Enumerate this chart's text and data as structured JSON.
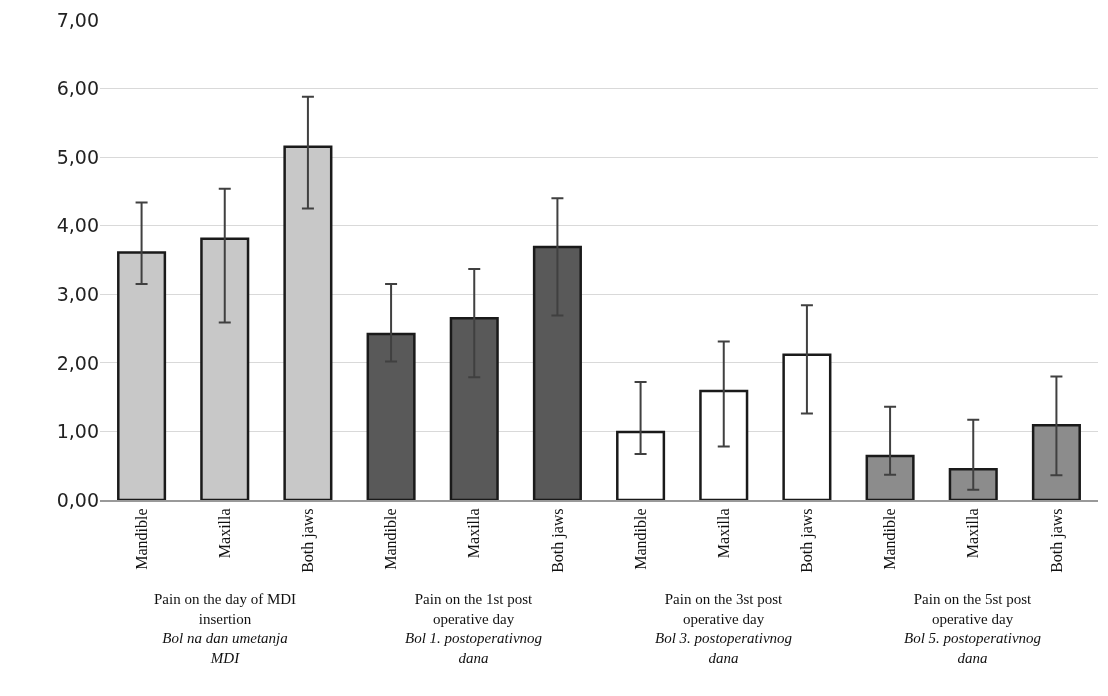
{
  "chart_data": {
    "type": "bar",
    "categories": [
      "Mandible",
      "Maxilla",
      "Both jaws",
      "Mandible",
      "Maxilla",
      "Both jaws",
      "Mandible",
      "Maxilla",
      "Both jaws",
      "Mandible",
      "Maxilla",
      "Both jaws"
    ],
    "values": [
      3.61,
      3.81,
      5.15,
      2.42,
      2.65,
      3.69,
      0.99,
      1.59,
      2.12,
      0.64,
      0.45,
      1.09
    ],
    "errors": [
      [
        3.15,
        4.34
      ],
      [
        2.59,
        4.54
      ],
      [
        4.25,
        5.88
      ],
      [
        2.02,
        3.15
      ],
      [
        1.79,
        3.37
      ],
      [
        2.69,
        4.4
      ],
      [
        0.67,
        1.72
      ],
      [
        0.78,
        2.31
      ],
      [
        1.26,
        2.84
      ],
      [
        0.37,
        1.36
      ],
      [
        0.15,
        1.17
      ],
      [
        0.36,
        1.8
      ]
    ],
    "colors": [
      "#c8c8c8",
      "#c8c8c8",
      "#c8c8c8",
      "#595959",
      "#595959",
      "#595959",
      "#ffffff",
      "#ffffff",
      "#ffffff",
      "#8c8c8c",
      "#8c8c8c",
      "#8c8c8c"
    ],
    "ylim": [
      0,
      7
    ],
    "yticks": [
      {
        "value": 0,
        "label": "0,00"
      },
      {
        "value": 1,
        "label": "1,00"
      },
      {
        "value": 2,
        "label": "2,00"
      },
      {
        "value": 3,
        "label": "3,00"
      },
      {
        "value": 4,
        "label": "4,00"
      },
      {
        "value": 5,
        "label": "5,00"
      },
      {
        "value": 6,
        "label": "6,00"
      },
      {
        "value": 7,
        "label": "7,00"
      }
    ],
    "grid": "y",
    "annotations": [
      "Pain on the day of MDI insertion",
      "Bol na dan umetanja MDI",
      "Pain on the 1st post operative day",
      "Bol 1. postoperativnog dana",
      "Pain on the 3st post operative day",
      "Bol 3. postoperativnog dana",
      "Pain on the 5st post operative day",
      "Bol 5. postoperativnog dana"
    ]
  }
}
